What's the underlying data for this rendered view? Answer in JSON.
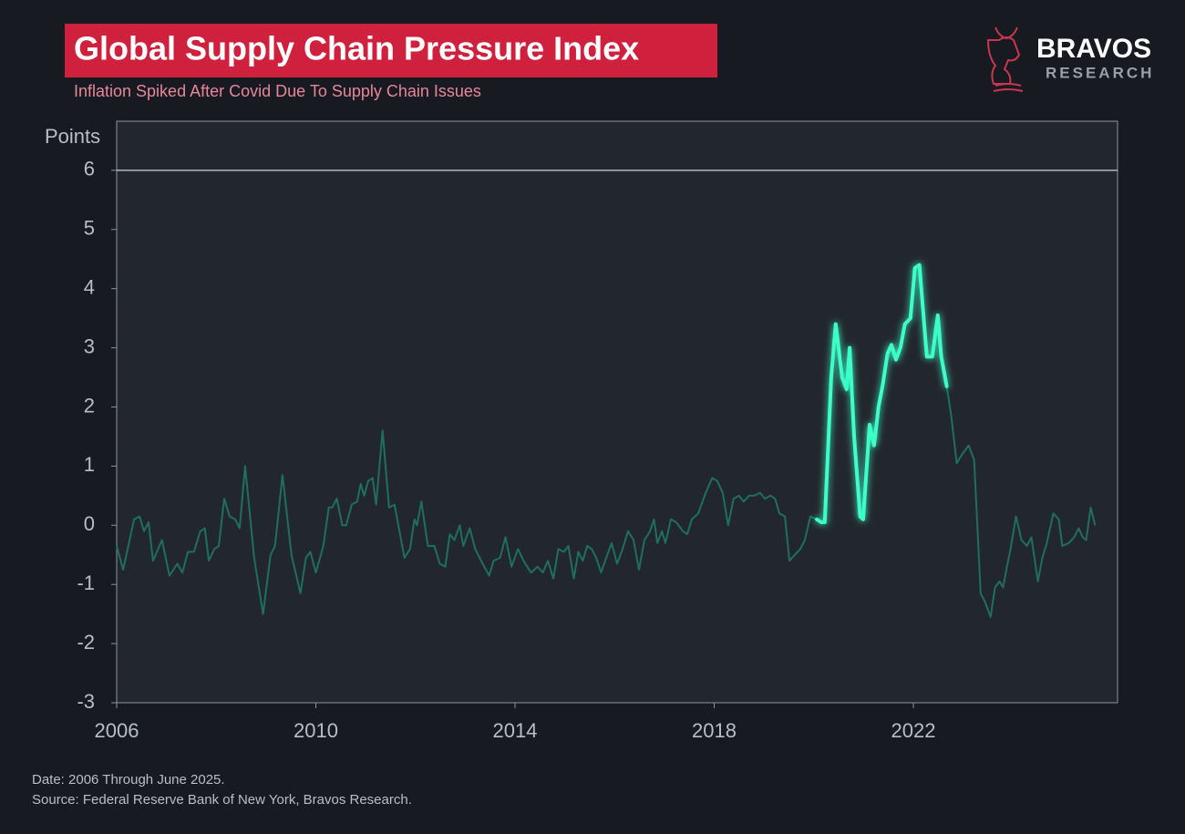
{
  "chart_data": {
    "type": "line",
    "title": "Global Supply Chain Pressure Index",
    "subtitle": "Inflation Spiked After Covid Due To Supply Chain Issues",
    "ylabel": "Points",
    "brand": "BRAVOS",
    "brand_sub": "RESEARCH",
    "notes": [
      "Date: 2006 Through June 2025.",
      "Source: Federal Reserve Bank of New York, Bravos Research."
    ],
    "xlim": [
      2006,
      2026.1
    ],
    "xticks": [
      2006,
      2010,
      2014,
      2018,
      2022
    ],
    "ylim": [
      -3,
      6.83
    ],
    "yticks": [
      -3,
      -2,
      -1,
      0,
      1,
      2,
      3,
      4,
      5,
      6
    ],
    "reference_line": 6,
    "color": "#1f6f5c",
    "highlight": {
      "xlim": [
        2020.06,
        2022.67
      ],
      "color": "#3dffc8"
    },
    "x": [
      2006.0,
      2006.13,
      2006.35,
      2006.46,
      2006.55,
      2006.64,
      2006.73,
      2006.91,
      2007.06,
      2007.22,
      2007.32,
      2007.43,
      2007.55,
      2007.68,
      2007.77,
      2007.85,
      2007.96,
      2008.05,
      2008.16,
      2008.27,
      2008.38,
      2008.47,
      2008.58,
      2008.76,
      2008.94,
      2009.09,
      2009.18,
      2009.33,
      2009.51,
      2009.69,
      2009.8,
      2009.89,
      2010.0,
      2010.15,
      2010.26,
      2010.33,
      2010.42,
      2010.53,
      2010.61,
      2010.72,
      2010.83,
      2010.9,
      2010.97,
      2011.05,
      2011.14,
      2011.21,
      2011.34,
      2011.47,
      2011.58,
      2011.78,
      2011.89,
      2011.98,
      2012.03,
      2012.12,
      2012.25,
      2012.38,
      2012.49,
      2012.6,
      2012.69,
      2012.78,
      2012.89,
      2012.96,
      2013.09,
      2013.2,
      2013.35,
      2013.48,
      2013.57,
      2013.7,
      2013.81,
      2013.93,
      2014.06,
      2014.17,
      2014.32,
      2014.45,
      2014.56,
      2014.66,
      2014.77,
      2014.87,
      2014.98,
      2015.07,
      2015.18,
      2015.27,
      2015.36,
      2015.45,
      2015.54,
      2015.63,
      2015.73,
      2015.83,
      2015.94,
      2016.05,
      2016.16,
      2016.27,
      2016.38,
      2016.49,
      2016.6,
      2016.71,
      2016.79,
      2016.86,
      2016.95,
      2017.02,
      2017.13,
      2017.24,
      2017.37,
      2017.46,
      2017.55,
      2017.68,
      2017.83,
      2017.96,
      2018.06,
      2018.17,
      2018.28,
      2018.39,
      2018.5,
      2018.59,
      2018.7,
      2018.81,
      2018.92,
      2019.02,
      2019.13,
      2019.22,
      2019.31,
      2019.42,
      2019.51,
      2019.62,
      2019.73,
      2019.82,
      2019.93,
      2020.06,
      2020.15,
      2020.22,
      2020.35,
      2020.44,
      2020.57,
      2020.66,
      2020.72,
      2020.81,
      2020.93,
      2020.99,
      2021.12,
      2021.21,
      2021.3,
      2021.39,
      2021.48,
      2021.56,
      2021.65,
      2021.74,
      2021.83,
      2021.94,
      2022.03,
      2022.12,
      2022.27,
      2022.38,
      2022.49,
      2022.56,
      2022.67,
      2022.76,
      2022.87,
      2022.98,
      2023.11,
      2023.22,
      2023.35,
      2023.44,
      2023.55,
      2023.64,
      2023.73,
      2023.8,
      2023.88,
      2023.95,
      2024.06,
      2024.17,
      2024.28,
      2024.37,
      2024.5,
      2024.59,
      2024.68,
      2024.81,
      2024.92,
      2024.99,
      2025.12,
      2025.23,
      2025.32,
      2025.4,
      2025.47,
      2025.56,
      2025.65
    ],
    "values": [
      -0.35,
      -0.75,
      0.1,
      0.15,
      -0.1,
      0.05,
      -0.6,
      -0.25,
      -0.85,
      -0.65,
      -0.8,
      -0.45,
      -0.45,
      -0.1,
      -0.05,
      -0.6,
      -0.4,
      -0.35,
      0.45,
      0.15,
      0.1,
      -0.05,
      1.0,
      -0.55,
      -1.5,
      -0.5,
      -0.35,
      0.85,
      -0.5,
      -1.15,
      -0.55,
      -0.45,
      -0.8,
      -0.35,
      0.3,
      0.3,
      0.45,
      0.0,
      0.0,
      0.35,
      0.4,
      0.7,
      0.5,
      0.75,
      0.8,
      0.35,
      1.6,
      0.3,
      0.35,
      -0.55,
      -0.4,
      0.1,
      0.0,
      0.4,
      -0.35,
      -0.35,
      -0.65,
      -0.7,
      -0.15,
      -0.25,
      0.0,
      -0.35,
      -0.05,
      -0.4,
      -0.65,
      -0.85,
      -0.6,
      -0.55,
      -0.2,
      -0.7,
      -0.4,
      -0.6,
      -0.8,
      -0.7,
      -0.8,
      -0.6,
      -0.9,
      -0.4,
      -0.45,
      -0.35,
      -0.9,
      -0.45,
      -0.6,
      -0.35,
      -0.4,
      -0.55,
      -0.8,
      -0.55,
      -0.3,
      -0.65,
      -0.4,
      -0.1,
      -0.25,
      -0.75,
      -0.25,
      -0.1,
      0.1,
      -0.3,
      -0.1,
      -0.3,
      0.1,
      0.05,
      -0.1,
      -0.15,
      0.1,
      0.2,
      0.55,
      0.8,
      0.75,
      0.55,
      0.0,
      0.45,
      0.5,
      0.4,
      0.5,
      0.5,
      0.55,
      0.45,
      0.5,
      0.45,
      0.2,
      0.15,
      -0.6,
      -0.5,
      -0.4,
      -0.25,
      0.15,
      0.1,
      0.05,
      0.05,
      2.5,
      3.4,
      2.5,
      2.3,
      3.0,
      1.5,
      0.15,
      0.1,
      1.7,
      1.35,
      2.0,
      2.4,
      2.9,
      3.05,
      2.8,
      3.0,
      3.4,
      3.5,
      4.35,
      4.4,
      2.85,
      2.85,
      3.55,
      2.85,
      2.35,
      1.85,
      1.05,
      1.2,
      1.35,
      1.1,
      -1.15,
      -1.3,
      -1.55,
      -1.05,
      -0.95,
      -1.05,
      -0.7,
      -0.4,
      0.15,
      -0.25,
      -0.35,
      -0.2,
      -0.95,
      -0.55,
      -0.3,
      0.2,
      0.1,
      -0.35,
      -0.3,
      -0.2,
      -0.05,
      -0.2,
      -0.25,
      0.3,
      0.0
    ]
  }
}
